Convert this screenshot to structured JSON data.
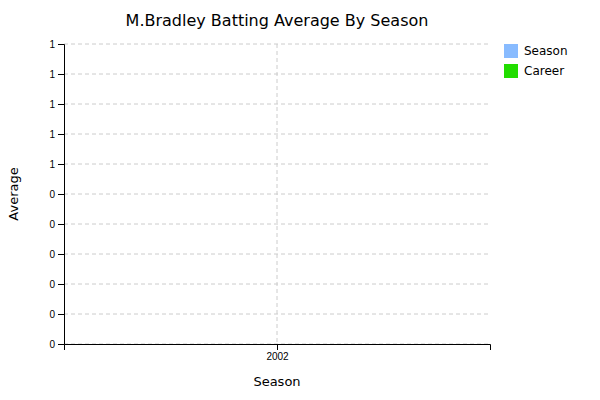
{
  "chart_data": {
    "type": "bar",
    "title": "M.Bradley Batting Average By Season",
    "xlabel": "Season",
    "ylabel": "Average",
    "x": [],
    "series": [
      {
        "name": "Season",
        "color": "#88bbff",
        "values": []
      },
      {
        "name": "Career",
        "color": "#22dd00",
        "values": []
      }
    ],
    "xlim": [
      2001.5,
      2002.5
    ],
    "xticks": [
      2002
    ],
    "ylim": [
      0,
      1
    ],
    "yticks": [
      0,
      {
        "value": 0.1,
        "label": "0"
      },
      {
        "value": 0.2,
        "label": "0"
      },
      {
        "value": 0.3,
        "label": "0"
      },
      {
        "value": 0.4,
        "label": "0"
      },
      {
        "value": 0.5,
        "label": "0"
      },
      {
        "value": 0.6,
        "label": "1"
      },
      {
        "value": 0.7,
        "label": "1"
      },
      {
        "value": 0.8,
        "label": "1"
      },
      {
        "value": 0.9,
        "label": "1"
      },
      1
    ],
    "grid": true,
    "legend": "upper right"
  }
}
